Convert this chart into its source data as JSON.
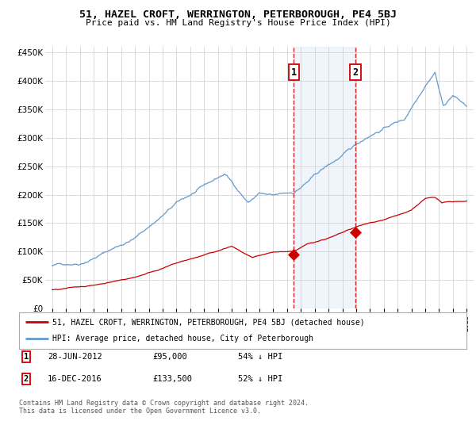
{
  "title": "51, HAZEL CROFT, WERRINGTON, PETERBOROUGH, PE4 5BJ",
  "subtitle": "Price paid vs. HM Land Registry's House Price Index (HPI)",
  "legend_line1": "51, HAZEL CROFT, WERRINGTON, PETERBOROUGH, PE4 5BJ (detached house)",
  "legend_line2": "HPI: Average price, detached house, City of Peterborough",
  "footnote": "Contains HM Land Registry data © Crown copyright and database right 2024.\nThis data is licensed under the Open Government Licence v3.0.",
  "transaction1_date": "28-JUN-2012",
  "transaction1_price": 95000,
  "transaction1_note": "54% ↓ HPI",
  "transaction2_date": "16-DEC-2016",
  "transaction2_price": 133500,
  "transaction2_note": "52% ↓ HPI",
  "transaction1_x": 2012.49,
  "transaction2_x": 2016.96,
  "shade_start": 2012.49,
  "shade_end": 2016.96,
  "red_color": "#cc0000",
  "blue_color": "#6699cc",
  "shade_color": "#ddeeff",
  "grid_color": "#cccccc",
  "background_color": "#ffffff",
  "ylim": [
    0,
    460000
  ],
  "xlim_start": 1994.5,
  "xlim_end": 2025.5
}
